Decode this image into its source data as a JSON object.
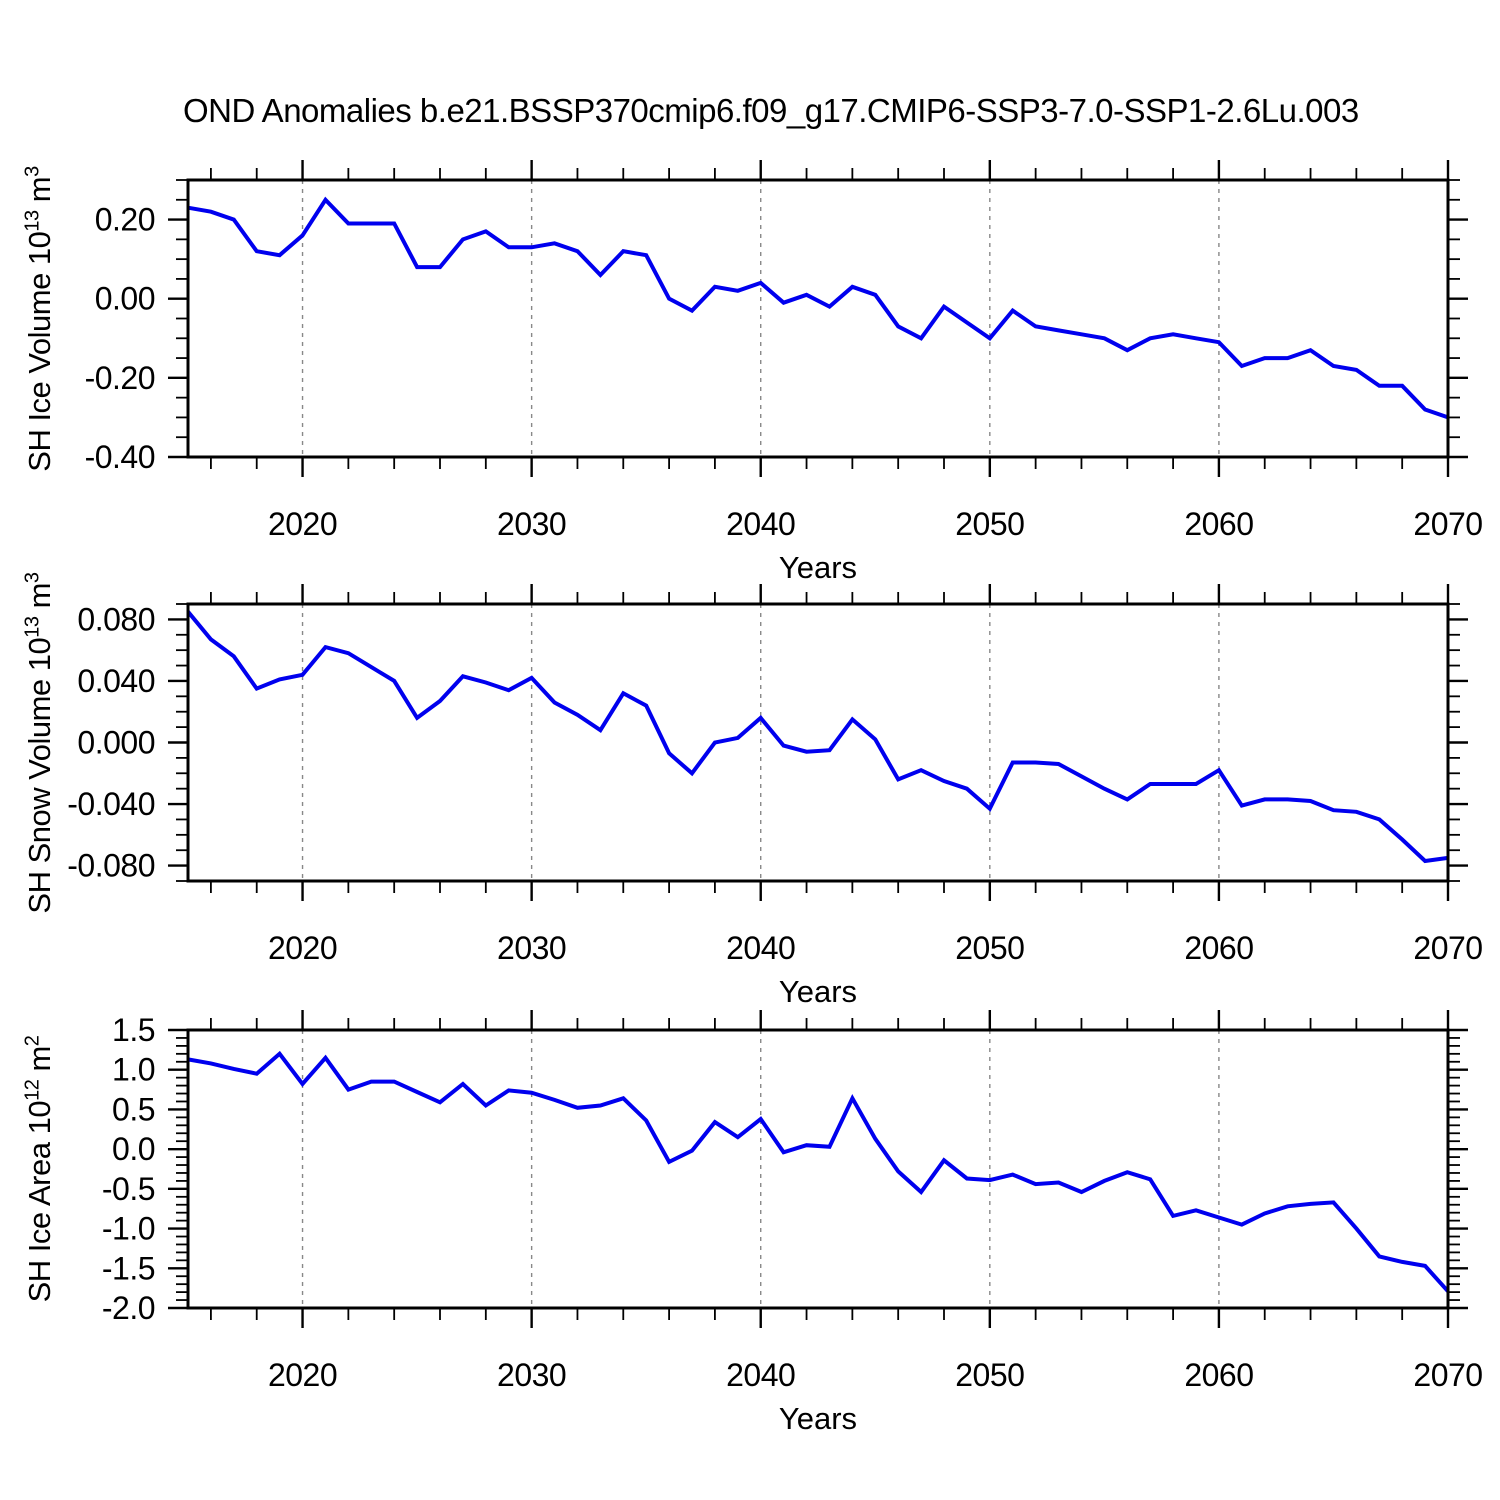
{
  "title": "OND Anomalies b.e21.BSSP370cmip6.f09_g17.CMIP6-SSP3-7.0-SSP1-2.6Lu.003",
  "style": {
    "line_color": "#0000ee",
    "grid_color": "#888888",
    "axis_color": "#000000",
    "background": "#ffffff"
  },
  "chart_data": [
    {
      "type": "line",
      "panel": "sh-ice-volume",
      "ylabel_prefix": "SH Ice Volume 10",
      "ylabel_exponent": "13",
      "ylabel_unit": " m",
      "ylabel_unit_exponent": "3",
      "xlabel": "Years",
      "legend": "none",
      "grid": "vertical-dashed",
      "x_start": 2015,
      "x_step": 1,
      "xlim": [
        2015,
        2070
      ],
      "ylim": [
        -0.4,
        0.3
      ],
      "y_major_ticks": [
        0.2,
        0.0,
        -0.2,
        -0.4
      ],
      "y_tick_labels": [
        "0.20",
        "0.00",
        "-0.20",
        "-0.40"
      ],
      "y_minor_step": 0.05,
      "x_major_ticks": [
        2020,
        2030,
        2040,
        2050,
        2060,
        2070
      ],
      "x_minor_step": 2,
      "gridline_years": [
        2020,
        2030,
        2040,
        2050,
        2060
      ],
      "values": [
        0.23,
        0.22,
        0.2,
        0.12,
        0.11,
        0.16,
        0.25,
        0.19,
        0.19,
        0.19,
        0.08,
        0.08,
        0.15,
        0.17,
        0.13,
        0.13,
        0.14,
        0.12,
        0.06,
        0.12,
        0.11,
        0.0,
        -0.03,
        0.03,
        0.02,
        0.04,
        -0.01,
        0.01,
        -0.02,
        0.03,
        0.01,
        -0.07,
        -0.1,
        -0.02,
        -0.06,
        -0.1,
        -0.03,
        -0.07,
        -0.08,
        -0.09,
        -0.1,
        -0.13,
        -0.1,
        -0.09,
        -0.1,
        -0.11,
        -0.17,
        -0.15,
        -0.15,
        -0.13,
        -0.17,
        -0.18,
        -0.22,
        -0.22,
        -0.28,
        -0.3
      ]
    },
    {
      "type": "line",
      "panel": "sh-snow-volume",
      "ylabel_prefix": "SH Snow Volume 10",
      "ylabel_exponent": "13",
      "ylabel_unit": " m",
      "ylabel_unit_exponent": "3",
      "xlabel": "Years",
      "legend": "none",
      "grid": "vertical-dashed",
      "x_start": 2015,
      "x_step": 1,
      "xlim": [
        2015,
        2070
      ],
      "ylim": [
        -0.09,
        0.09
      ],
      "y_major_ticks": [
        0.08,
        0.04,
        0.0,
        -0.04,
        -0.08
      ],
      "y_tick_labels": [
        "0.080",
        "0.040",
        "0.000",
        "-0.040",
        "-0.080"
      ],
      "y_minor_step": 0.01,
      "x_major_ticks": [
        2020,
        2030,
        2040,
        2050,
        2060,
        2070
      ],
      "x_minor_step": 2,
      "gridline_years": [
        2020,
        2030,
        2040,
        2050,
        2060
      ],
      "values": [
        0.085,
        0.067,
        0.056,
        0.035,
        0.041,
        0.044,
        0.062,
        0.058,
        0.049,
        0.04,
        0.016,
        0.027,
        0.043,
        0.039,
        0.034,
        0.042,
        0.026,
        0.018,
        0.008,
        0.032,
        0.024,
        -0.007,
        -0.02,
        0.0,
        0.003,
        0.016,
        -0.002,
        -0.006,
        -0.005,
        0.015,
        0.002,
        -0.024,
        -0.018,
        -0.025,
        -0.03,
        -0.043,
        -0.013,
        -0.013,
        -0.014,
        -0.022,
        -0.03,
        -0.037,
        -0.027,
        -0.027,
        -0.027,
        -0.018,
        -0.041,
        -0.037,
        -0.037,
        -0.038,
        -0.044,
        -0.045,
        -0.05,
        -0.063,
        -0.077,
        -0.075
      ]
    },
    {
      "type": "line",
      "panel": "sh-ice-area",
      "ylabel_prefix": "SH Ice Area 10",
      "ylabel_exponent": "12",
      "ylabel_unit": " m",
      "ylabel_unit_exponent": "2",
      "xlabel": "Years",
      "legend": "none",
      "grid": "vertical-dashed",
      "x_start": 2015,
      "x_step": 1,
      "xlim": [
        2015,
        2070
      ],
      "ylim": [
        -2.0,
        1.5
      ],
      "y_major_ticks": [
        1.5,
        1.0,
        0.5,
        0.0,
        -0.5,
        -1.0,
        -1.5,
        -2.0
      ],
      "y_tick_labels": [
        "1.5",
        "1.0",
        "0.5",
        "0.0",
        "-0.5",
        "-1.0",
        "-1.5",
        "-2.0"
      ],
      "y_minor_step": 0.1,
      "x_major_ticks": [
        2020,
        2030,
        2040,
        2050,
        2060,
        2070
      ],
      "x_minor_step": 2,
      "gridline_years": [
        2020,
        2030,
        2040,
        2050,
        2060
      ],
      "values": [
        1.13,
        1.08,
        1.01,
        0.95,
        1.2,
        0.82,
        1.15,
        0.75,
        0.85,
        0.85,
        0.72,
        0.59,
        0.82,
        0.55,
        0.74,
        0.71,
        0.62,
        0.52,
        0.55,
        0.64,
        0.36,
        -0.16,
        -0.02,
        0.34,
        0.15,
        0.38,
        -0.04,
        0.05,
        0.03,
        0.64,
        0.13,
        -0.28,
        -0.54,
        -0.14,
        -0.37,
        -0.39,
        -0.32,
        -0.44,
        -0.42,
        -0.54,
        -0.4,
        -0.29,
        -0.38,
        -0.84,
        -0.77,
        -0.86,
        -0.95,
        -0.81,
        -0.72,
        -0.69,
        -0.67,
        -1.0,
        -1.35,
        -1.42,
        -1.47,
        -1.79
      ]
    }
  ]
}
